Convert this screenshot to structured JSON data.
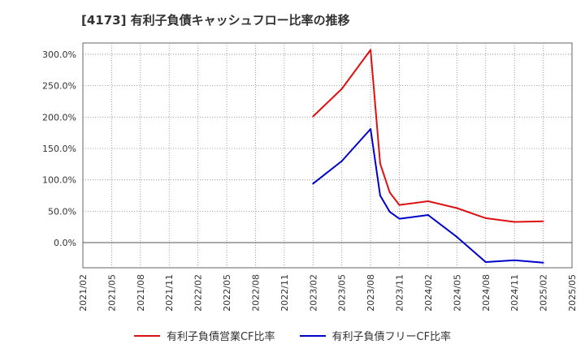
{
  "chart_data": {
    "type": "line",
    "title": "[4173]  有利子負債キャッシュフロー比率の推移",
    "xlabel": "",
    "ylabel": "",
    "ylim": [
      -40,
      318
    ],
    "y_ticks": [
      0,
      50,
      100,
      150,
      200,
      250,
      300
    ],
    "y_tick_labels": [
      "0.0%",
      "50.0%",
      "100.0%",
      "150.0%",
      "200.0%",
      "250.0%",
      "300.0%"
    ],
    "x_tick_labels": [
      "2021/02",
      "2021/05",
      "2021/08",
      "2021/11",
      "2022/02",
      "2022/05",
      "2022/08",
      "2022/11",
      "2023/02",
      "2023/05",
      "2023/08",
      "2023/11",
      "2024/02",
      "2024/05",
      "2024/08",
      "2024/11",
      "2025/02",
      "2025/05"
    ],
    "grid": true,
    "legend_position": "bottom",
    "series": [
      {
        "name": "有利子負債営業CF比率",
        "color": "#dd1111",
        "points": [
          {
            "x": "2023/02",
            "y": 201
          },
          {
            "x": "2023/05",
            "y": 245
          },
          {
            "x": "2023/08",
            "y": 307
          },
          {
            "x": "2023/09",
            "y": 126
          },
          {
            "x": "2023/10",
            "y": 80
          },
          {
            "x": "2023/11",
            "y": 60
          },
          {
            "x": "2024/02",
            "y": 66
          },
          {
            "x": "2024/05",
            "y": 55
          },
          {
            "x": "2024/08",
            "y": 39
          },
          {
            "x": "2024/11",
            "y": 33
          },
          {
            "x": "2025/02",
            "y": 34
          }
        ]
      },
      {
        "name": "有利子負債フリーCF比率",
        "color": "#0000cc",
        "points": [
          {
            "x": "2023/02",
            "y": 94
          },
          {
            "x": "2023/05",
            "y": 130
          },
          {
            "x": "2023/08",
            "y": 181
          },
          {
            "x": "2023/09",
            "y": 75
          },
          {
            "x": "2023/10",
            "y": 49
          },
          {
            "x": "2023/11",
            "y": 38
          },
          {
            "x": "2024/02",
            "y": 44
          },
          {
            "x": "2024/05",
            "y": 9
          },
          {
            "x": "2024/08",
            "y": -31
          },
          {
            "x": "2024/11",
            "y": -28
          },
          {
            "x": "2025/02",
            "y": -32
          }
        ]
      }
    ]
  }
}
